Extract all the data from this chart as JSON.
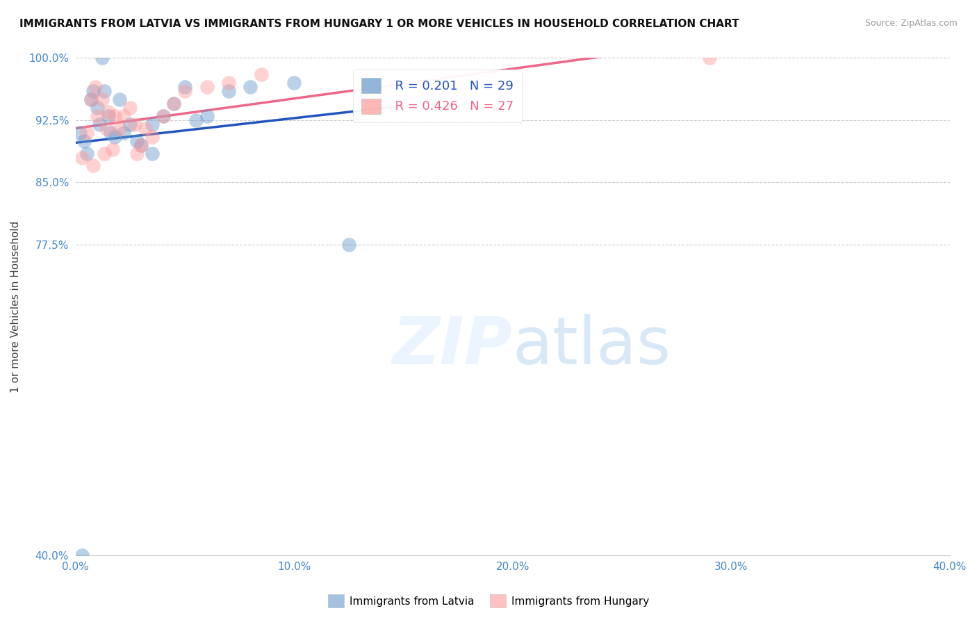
{
  "title": "IMMIGRANTS FROM LATVIA VS IMMIGRANTS FROM HUNGARY 1 OR MORE VEHICLES IN HOUSEHOLD CORRELATION CHART",
  "source": "Source: ZipAtlas.com",
  "ylabel": "1 or more Vehicles in Household",
  "xlim": [
    0.0,
    40.0
  ],
  "ylim": [
    40.0,
    100.0
  ],
  "xticks": [
    0.0,
    10.0,
    20.0,
    30.0,
    40.0
  ],
  "yticks": [
    40.0,
    77.5,
    85.0,
    92.5,
    100.0
  ],
  "legend_labels": [
    "Immigrants from Latvia",
    "Immigrants from Hungary"
  ],
  "legend_r": [
    "R = 0.201",
    "R = 0.426"
  ],
  "legend_n": [
    "N = 29",
    "N = 27"
  ],
  "latvia_color": "#6699CC",
  "hungary_color": "#FF9999",
  "latvia_line_color": "#2255BB",
  "hungary_line_color": "#EE6688",
  "background_color": "#FFFFFF",
  "latvia_x": [
    0.3,
    0.5,
    0.7,
    0.8,
    1.0,
    1.1,
    1.2,
    1.3,
    1.5,
    1.6,
    1.8,
    2.0,
    2.2,
    2.5,
    2.8,
    3.0,
    3.5,
    4.0,
    4.5,
    5.0,
    5.5,
    6.0,
    7.0,
    8.0,
    10.0,
    12.5,
    3.5,
    0.2,
    0.4
  ],
  "latvia_y": [
    40.0,
    88.5,
    95.0,
    96.0,
    94.0,
    92.0,
    100.0,
    96.0,
    93.0,
    91.0,
    90.5,
    95.0,
    91.0,
    92.0,
    90.0,
    89.5,
    92.0,
    93.0,
    94.5,
    96.5,
    92.5,
    93.0,
    96.0,
    96.5,
    97.0,
    77.5,
    88.5,
    91.0,
    90.0
  ],
  "hungary_x": [
    0.3,
    0.5,
    0.7,
    0.9,
    1.0,
    1.2,
    1.4,
    1.5,
    1.7,
    1.8,
    2.0,
    2.2,
    2.5,
    2.7,
    3.0,
    3.2,
    3.5,
    4.0,
    4.5,
    5.0,
    6.0,
    7.0,
    8.5,
    29.0,
    0.8,
    1.3,
    2.8
  ],
  "hungary_y": [
    88.0,
    91.0,
    95.0,
    96.5,
    93.0,
    95.0,
    91.5,
    93.5,
    89.0,
    93.0,
    91.5,
    93.0,
    94.0,
    92.0,
    89.5,
    91.5,
    90.5,
    93.0,
    94.5,
    96.0,
    96.5,
    97.0,
    98.0,
    100.0,
    87.0,
    88.5,
    88.5
  ]
}
